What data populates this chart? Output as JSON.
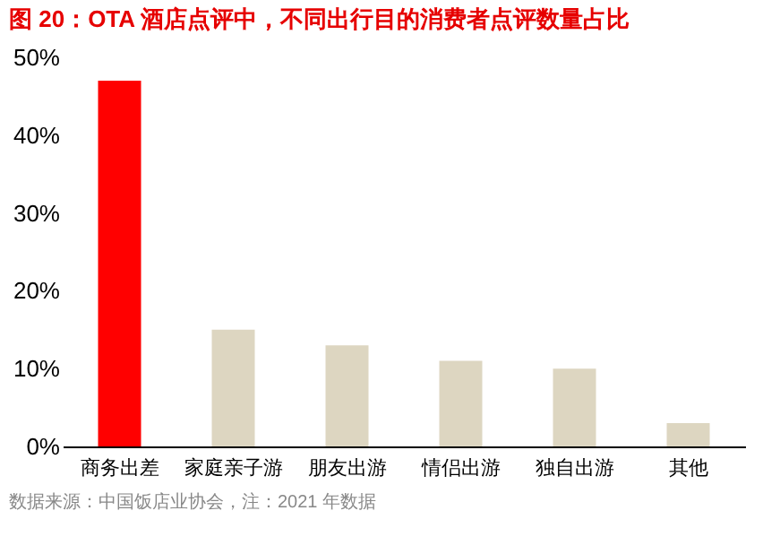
{
  "chart_data": {
    "type": "bar",
    "title": "图 20：OTA 酒店点评中，不同出行目的消费者点评数量占比",
    "categories": [
      "商务出差",
      "家庭亲子游",
      "朋友出游",
      "情侣出游",
      "独自出游",
      "其他"
    ],
    "values": [
      47,
      15,
      13,
      11,
      10,
      3
    ],
    "colors": [
      "#ff0000",
      "#ddd6c1",
      "#ddd6c1",
      "#ddd6c1",
      "#ddd6c1",
      "#ddd6c1"
    ],
    "ylim": [
      0,
      50
    ],
    "yticks": [
      {
        "value": 0,
        "label": "0%"
      },
      {
        "value": 10,
        "label": "10%"
      },
      {
        "value": 20,
        "label": "20%"
      },
      {
        "value": 30,
        "label": "30%"
      },
      {
        "value": 40,
        "label": "40%"
      },
      {
        "value": 50,
        "label": "50%"
      }
    ],
    "grid": false,
    "annotations": [
      "数据来源：中国饭店业协会，注：2021 年数据"
    ]
  }
}
